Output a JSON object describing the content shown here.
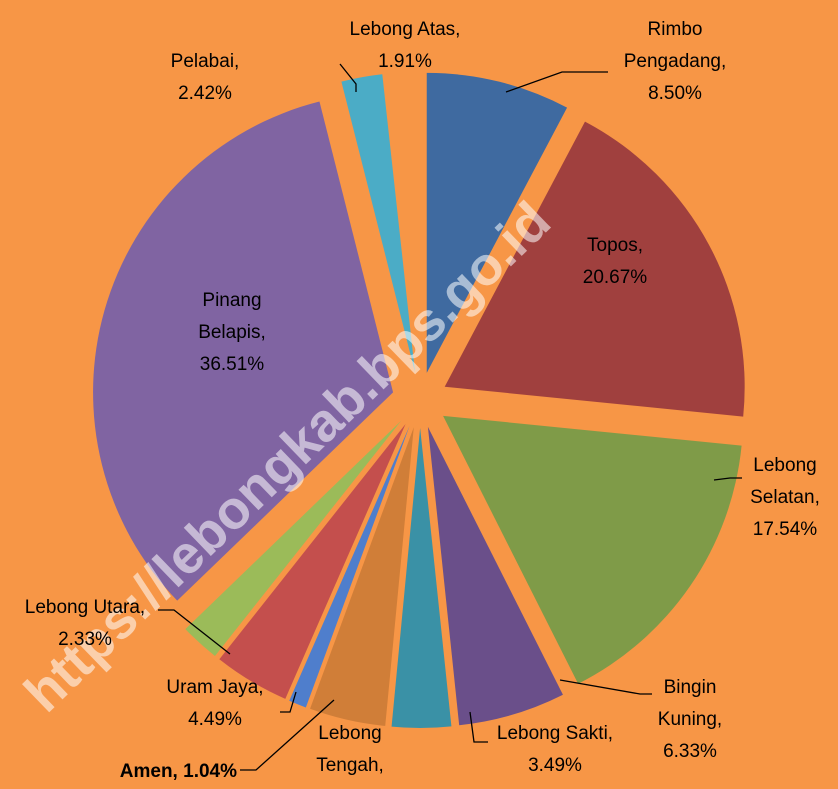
{
  "chart_data": {
    "type": "pie",
    "categories": [
      "Rimbo Pengadang,",
      "Topos,",
      "Lebong Selatan,",
      "Bingin Kuning,",
      "Lebong Sakti,",
      "Lebong Tengah,",
      "Amen,",
      "Uram Jaya,",
      "Lebong Utara,",
      "Pinang Belapis,",
      "Pelabai,",
      "Lebong Atas,"
    ],
    "values": [
      8.5,
      20.67,
      17.54,
      6.33,
      3.49,
      4.5,
      1.04,
      4.49,
      2.33,
      36.51,
      2.42,
      1.91
    ],
    "value_labels": [
      "8.50%",
      "20.67%",
      "17.54%",
      "6.33%",
      "3.49%",
      null,
      "1.04%",
      "4.49%",
      "2.33%",
      "36.51%",
      "2.42%",
      "1.91%"
    ],
    "colors": [
      "#3F6AA0",
      "#A0403E",
      "#7F9B48",
      "#6A4F8A",
      "#3A91A6",
      "#D07E38",
      "#4F7ECC",
      "#C44F4D",
      "#9BBB59",
      "#8064A2",
      "#4BACC6",
      "#F79646"
    ],
    "watermark": "https://lebongkab.bps.go.id"
  }
}
